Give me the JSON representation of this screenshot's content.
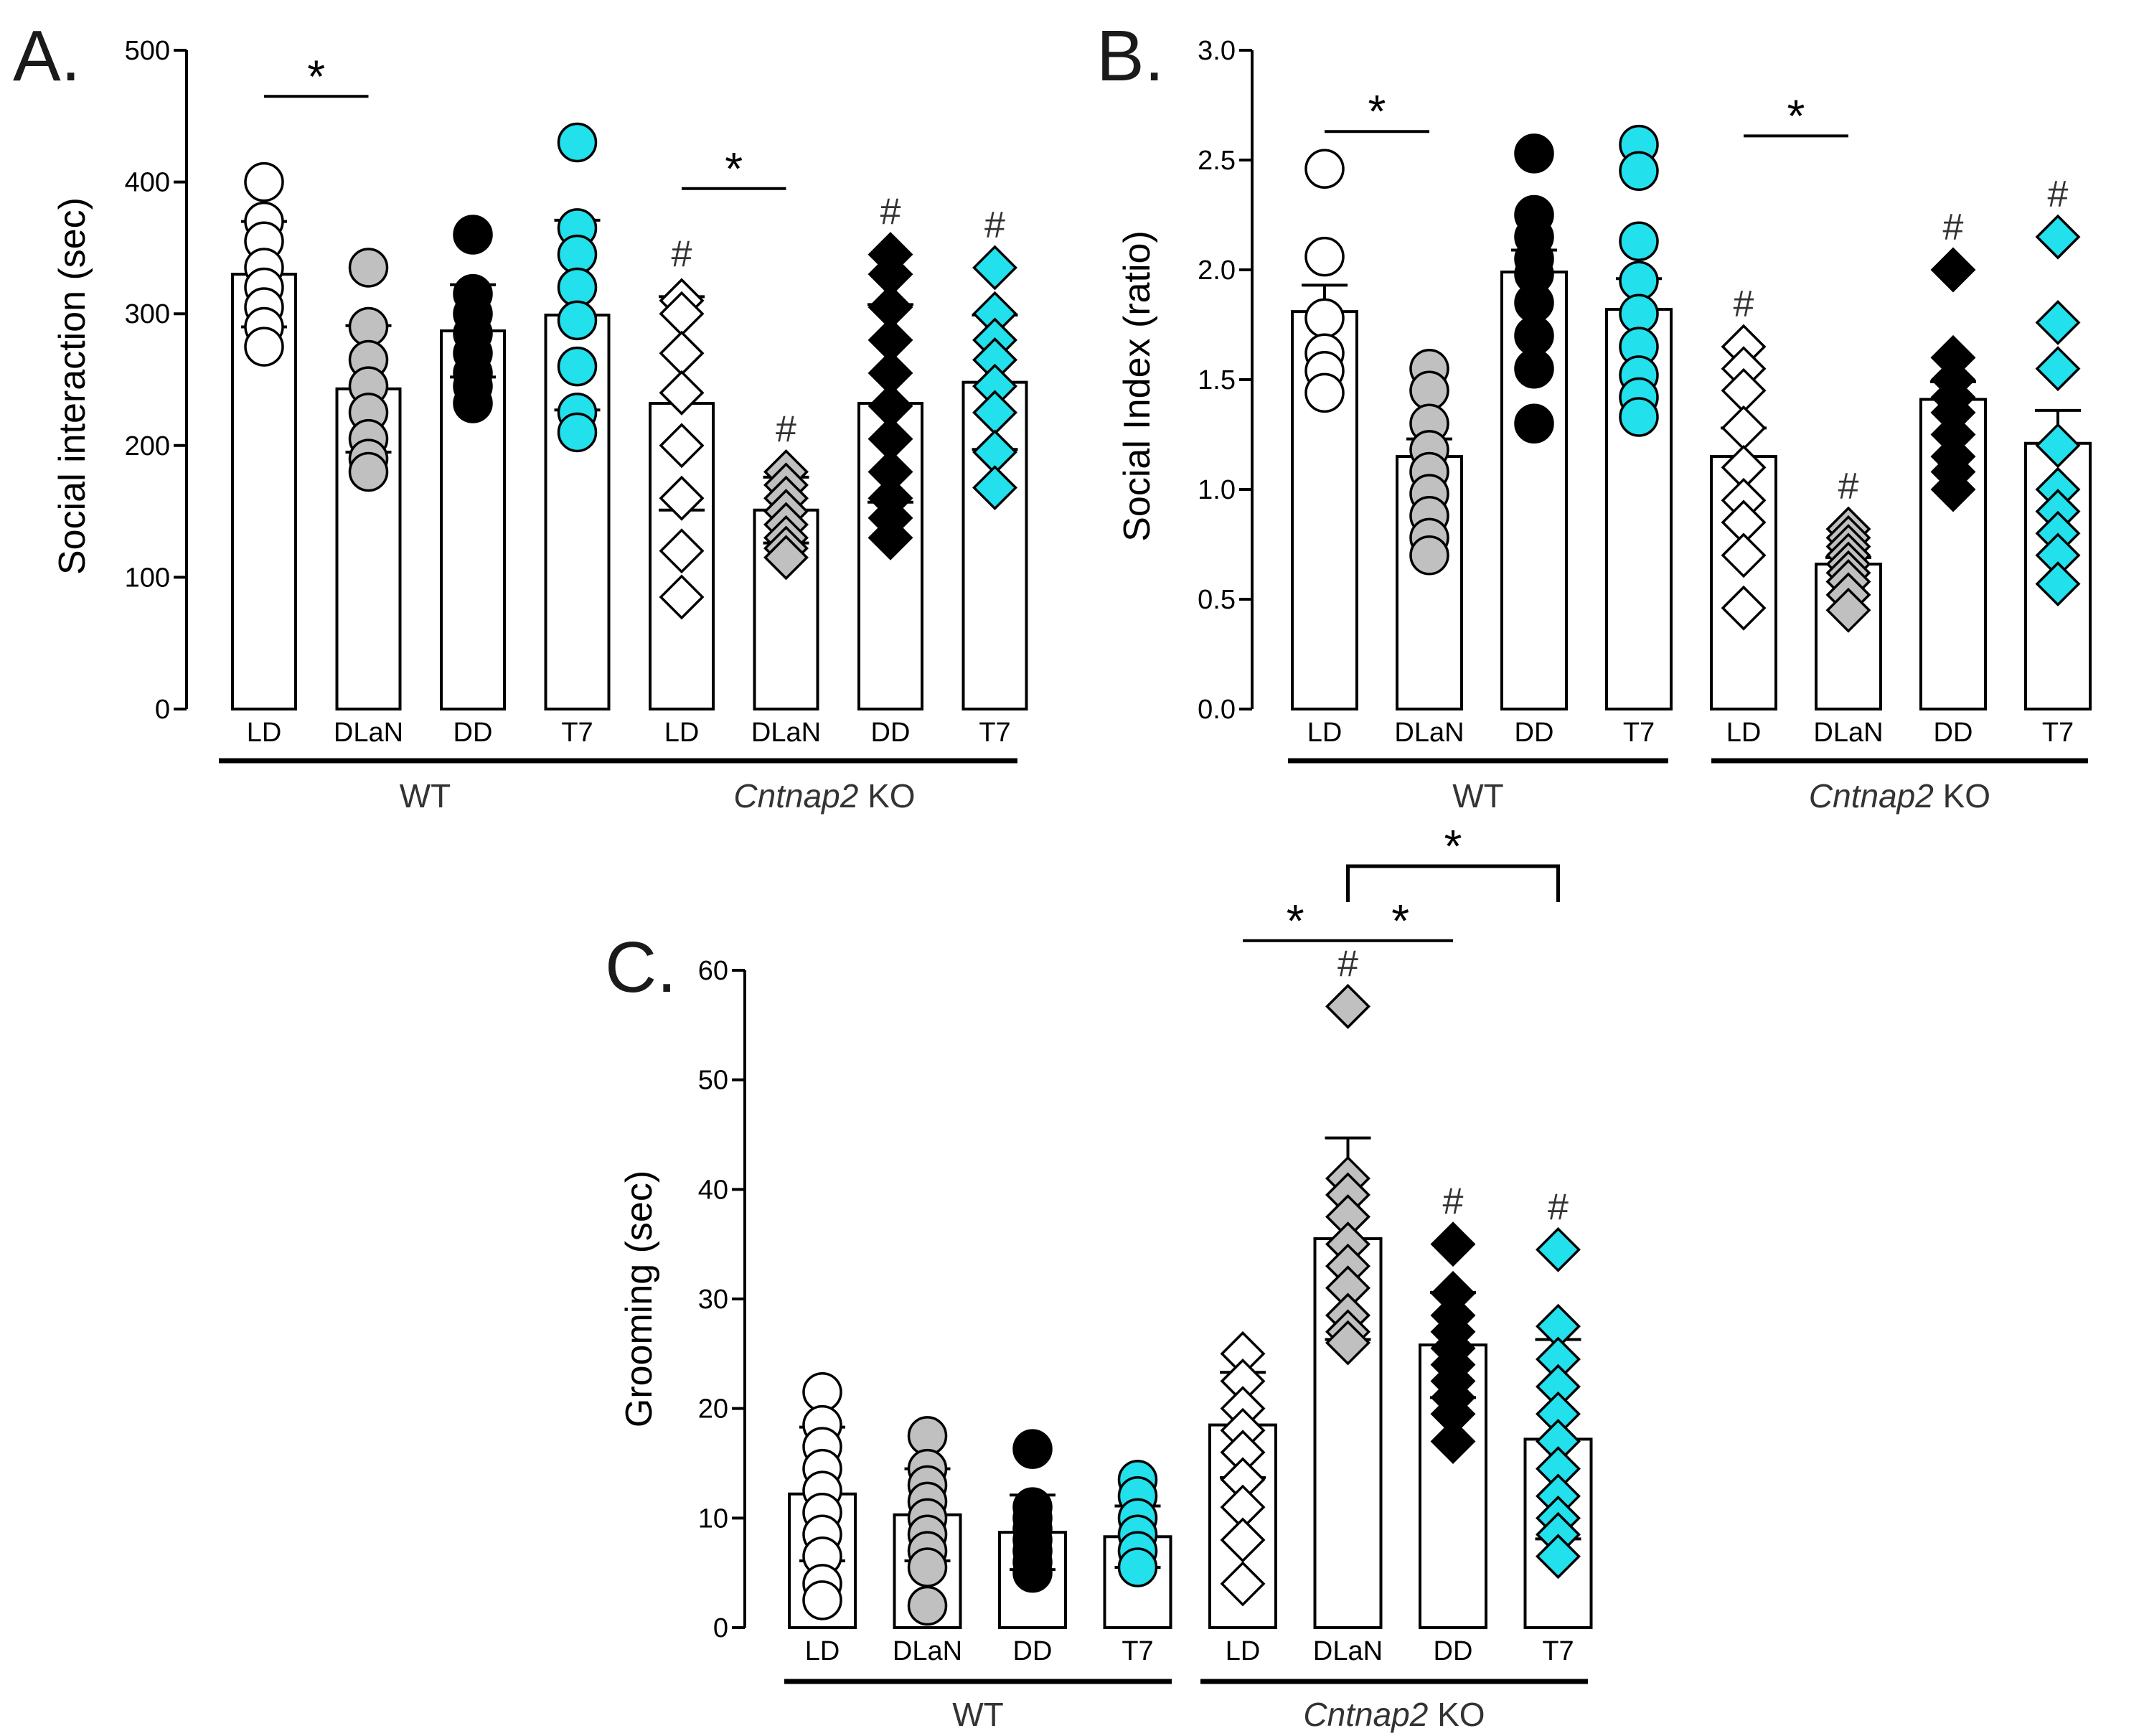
{
  "colors": {
    "LD": "#ffffff",
    "DLaN": "#c0c0c0",
    "DD": "#000000",
    "T7": "#22e0ec"
  },
  "chart_data": [
    {
      "id": "A",
      "type": "bar",
      "panel_label": "A.",
      "ylabel": "Social interaction (sec)",
      "ylim": [
        0,
        500
      ],
      "yticks": [
        "0",
        "100",
        "200",
        "300",
        "400",
        "500"
      ],
      "categories": [
        "LD",
        "DLaN",
        "DD",
        "T7",
        "LD",
        "DLaN",
        "DD",
        "T7"
      ],
      "groups": [
        {
          "label": "WT",
          "italic_part": "",
          "plain_part": "WT"
        },
        {
          "label": "Cntnap2 KO",
          "italic_part": "Cntnap2",
          "plain_part": " KO"
        }
      ],
      "means": [
        330,
        243,
        287,
        299,
        232,
        151,
        232,
        248
      ],
      "sd": [
        40,
        48,
        35,
        72,
        81,
        25,
        75,
        51
      ],
      "points": [
        [
          400,
          370,
          355,
          335,
          320,
          305,
          290,
          275
        ],
        [
          335,
          290,
          265,
          245,
          225,
          205,
          190,
          180
        ],
        [
          360,
          315,
          300,
          285,
          270,
          255,
          245,
          232
        ],
        [
          430,
          365,
          345,
          320,
          295,
          260,
          225,
          210
        ],
        [
          310,
          300,
          270,
          240,
          200,
          160,
          120,
          85
        ],
        [
          180,
          170,
          160,
          150,
          140,
          130,
          122,
          115
        ],
        [
          345,
          330,
          305,
          280,
          255,
          230,
          205,
          180,
          160,
          145,
          130
        ],
        [
          335,
          300,
          280,
          265,
          245,
          225,
          195,
          168
        ]
      ],
      "marker_shapes": [
        "circle",
        "circle",
        "circle",
        "circle",
        "diamond",
        "diamond",
        "diamond",
        "diamond"
      ],
      "hash_marks": [
        {
          "index": 4,
          "text": "#"
        },
        {
          "index": 5,
          "text": "#"
        },
        {
          "index": 6,
          "text": "#"
        },
        {
          "index": 7,
          "text": "#"
        }
      ],
      "significance": [
        {
          "from": 0,
          "to": 1,
          "level": 465,
          "text": "*"
        },
        {
          "from": 4,
          "to": 5,
          "level": 395,
          "text": "*"
        }
      ]
    },
    {
      "id": "B",
      "type": "bar",
      "panel_label": "B.",
      "ylabel": "Social Index (ratio)",
      "ylim": [
        0,
        3
      ],
      "yticks": [
        "0.0",
        "0.5",
        "1.0",
        "1.5",
        "2.0",
        "2.5",
        "3.0"
      ],
      "categories": [
        "LD",
        "DLaN",
        "DD",
        "T7",
        "LD",
        "DLaN",
        "DD",
        "T7"
      ],
      "groups": [
        {
          "label": "WT",
          "italic_part": "",
          "plain_part": "WT"
        },
        {
          "label": "Cntnap2 KO",
          "italic_part": "Cntnap2",
          "plain_part": " KO"
        }
      ],
      "means": [
        1.81,
        1.15,
        1.99,
        1.82,
        1.15,
        0.66,
        1.41,
        1.21
      ],
      "sem": [
        0.12,
        0.08,
        0.1,
        0.14,
        0.13,
        0.03,
        0.08,
        0.15
      ],
      "points": [
        [
          2.46,
          2.06,
          1.78,
          1.62,
          1.54,
          1.44
        ],
        [
          1.55,
          1.45,
          1.3,
          1.18,
          1.08,
          0.98,
          0.88,
          0.78,
          0.7
        ],
        [
          2.53,
          2.25,
          2.15,
          2.05,
          1.98,
          1.85,
          1.7,
          1.55,
          1.3
        ],
        [
          2.57,
          2.45,
          2.13,
          1.95,
          1.8,
          1.65,
          1.52,
          1.42,
          1.33
        ],
        [
          1.65,
          1.55,
          1.45,
          1.28,
          1.1,
          0.95,
          0.85,
          0.7,
          0.46
        ],
        [
          0.82,
          0.78,
          0.74,
          0.7,
          0.66,
          0.62,
          0.58,
          0.52,
          0.45
        ],
        [
          2.0,
          1.6,
          1.5,
          1.42,
          1.35,
          1.25,
          1.15,
          1.08,
          1.0
        ],
        [
          2.15,
          1.76,
          1.55,
          1.2,
          1.0,
          0.9,
          0.8,
          0.7,
          0.57
        ]
      ],
      "marker_shapes": [
        "circle",
        "circle",
        "circle",
        "circle",
        "diamond",
        "diamond",
        "diamond",
        "diamond"
      ],
      "hash_marks": [
        {
          "index": 4,
          "text": "#"
        },
        {
          "index": 5,
          "text": "#"
        },
        {
          "index": 6,
          "text": "#"
        },
        {
          "index": 7,
          "text": "#"
        }
      ],
      "significance": [
        {
          "from": 0,
          "to": 1,
          "level": 2.63,
          "text": "*"
        },
        {
          "from": 4,
          "to": 5,
          "level": 2.61,
          "text": "*"
        }
      ]
    },
    {
      "id": "C",
      "type": "bar",
      "panel_label": "C.",
      "ylabel": "Grooming (sec)",
      "ylim": [
        0,
        60
      ],
      "yticks": [
        "0",
        "10",
        "20",
        "30",
        "40",
        "50",
        "60"
      ],
      "categories": [
        "LD",
        "DLaN",
        "DD",
        "T7",
        "LD",
        "DLaN",
        "DD",
        "T7"
      ],
      "groups": [
        {
          "label": "WT",
          "italic_part": "",
          "plain_part": "WT"
        },
        {
          "label": "Cntnap2 KO",
          "italic_part": "Cntnap2",
          "plain_part": " KO"
        }
      ],
      "means": [
        12.2,
        10.3,
        8.7,
        8.3,
        18.5,
        35.5,
        25.8,
        17.2
      ],
      "sd": [
        6.1,
        4.2,
        3.4,
        2.8,
        4.8,
        9.2,
        4.8,
        9.1
      ],
      "points": [
        [
          21.5,
          18.5,
          16.5,
          14.5,
          12.5,
          10.5,
          8.5,
          6.5,
          4.0,
          2.5
        ],
        [
          17.5,
          14.5,
          13.0,
          11.5,
          10.0,
          8.5,
          7.0,
          5.5,
          2.0
        ],
        [
          16.3,
          11.0,
          10.0,
          9.0,
          8.0,
          7.0,
          6.0,
          5.0
        ],
        [
          13.5,
          12.0,
          10.0,
          8.5,
          7.0,
          5.5
        ],
        [
          25.0,
          22.5,
          20.0,
          18.0,
          16.0,
          13.5,
          11.0,
          8.0,
          4.0
        ],
        [
          56.7,
          41.0,
          39.5,
          37.5,
          35.0,
          33.0,
          31.0,
          28.5,
          27.0,
          26.0
        ],
        [
          35.0,
          30.5,
          28.5,
          27.0,
          25.5,
          24.0,
          22.5,
          21.0,
          19.5,
          17.0
        ],
        [
          34.5,
          27.5,
          24.5,
          22.0,
          19.5,
          17.0,
          14.5,
          12.0,
          10.0,
          8.5,
          6.5
        ]
      ],
      "marker_shapes": [
        "circle",
        "circle",
        "circle",
        "circle",
        "diamond",
        "diamond",
        "diamond",
        "diamond"
      ],
      "hash_marks": [
        {
          "index": 5,
          "text": "#"
        },
        {
          "index": 6,
          "text": "#"
        },
        {
          "index": 7,
          "text": "#"
        }
      ],
      "significance": [
        {
          "from": 4,
          "to": 5,
          "level": 62.7,
          "text": "*",
          "style": "line"
        },
        {
          "from": 5,
          "to": 6,
          "level": 62.7,
          "text": "*",
          "style": "line"
        },
        {
          "from": 5,
          "to": 7,
          "level": 69.5,
          "text": "*",
          "style": "bracket"
        }
      ]
    }
  ]
}
